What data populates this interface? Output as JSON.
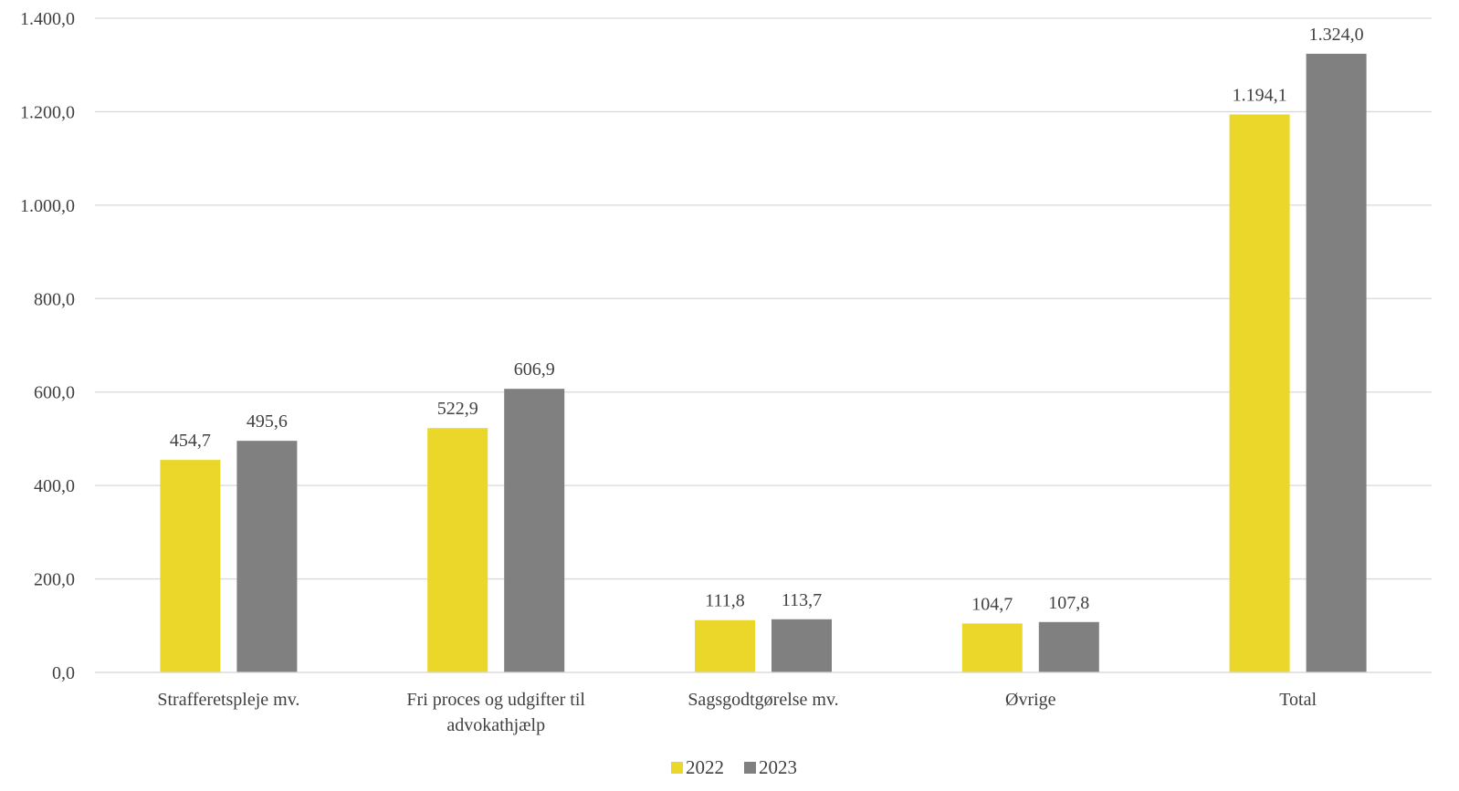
{
  "chart_data": {
    "type": "bar",
    "categories": [
      [
        "Strafferetspleje mv."
      ],
      [
        "Fri proces og udgifter til",
        "advokathjælp"
      ],
      [
        "Sagsgodtgørelse mv."
      ],
      [
        "Øvrige"
      ],
      [
        "Total"
      ]
    ],
    "series": [
      {
        "name": "2022",
        "color": "#EBD72A",
        "values": [
          454.7,
          522.9,
          111.8,
          104.7,
          1194.1
        ],
        "labels": [
          "454,7",
          "522,9",
          "111,8",
          "104,7",
          "1.194,1"
        ]
      },
      {
        "name": "2023",
        "color": "#808080",
        "values": [
          495.6,
          606.9,
          113.7,
          107.8,
          1324.0
        ],
        "labels": [
          "495,6",
          "606,9",
          "113,7",
          "107,8",
          "1.324,0"
        ]
      }
    ],
    "ylim": [
      0,
      1400
    ],
    "yticks": [
      0,
      200,
      400,
      600,
      800,
      1000,
      1200,
      1400
    ],
    "ytick_labels": [
      "0,0",
      "200,0",
      "400,0",
      "600,0",
      "800,0",
      "1.000,0",
      "1.200,0",
      "1.400,0"
    ],
    "grid": true,
    "gridline_color": "#D9D9D9",
    "legend_position": "bottom"
  }
}
